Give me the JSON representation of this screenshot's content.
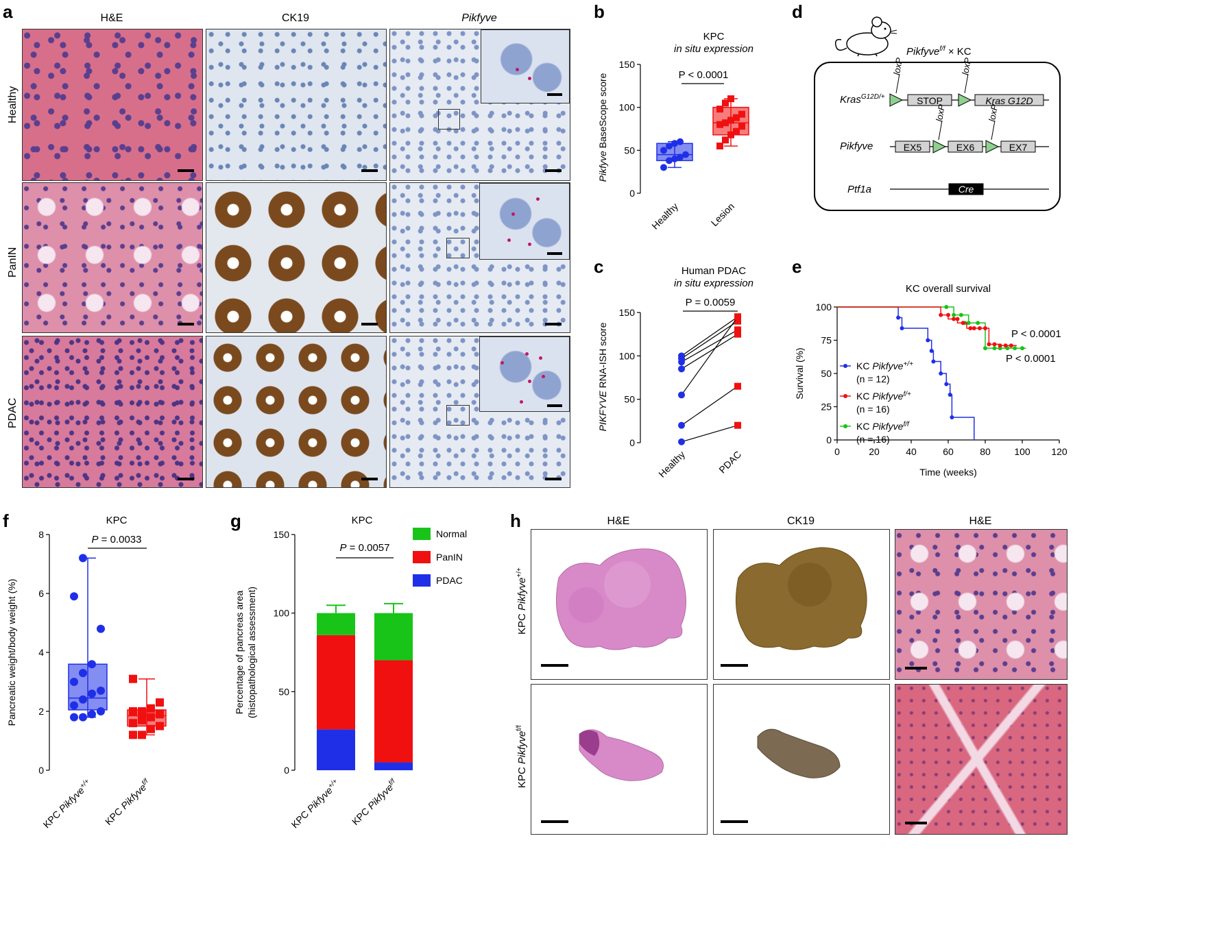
{
  "panel_letters": {
    "a": "a",
    "b": "b",
    "c": "c",
    "d": "d",
    "e": "e",
    "f": "f",
    "g": "g",
    "h": "h"
  },
  "panel_a": {
    "col_titles": [
      "H&E",
      "CK19",
      "Pikfyve"
    ],
    "row_titles": [
      "Healthy",
      "PanIN",
      "PDAC"
    ]
  },
  "panel_d": {
    "cross_label": "Pikfyve",
    "cross_sup": "f/f",
    "cross_suffix": " × KC",
    "kras_label": "Kras",
    "kras_sup": "G12D/+",
    "loxp": "loxP",
    "stop": "STOP",
    "kras_g12d": "Kras G12D",
    "pikfyve_label": "Pikfyve",
    "ex5": "EX5",
    "ex6": "EX6",
    "ex7": "EX7",
    "ptf1a_label": "Ptf1a",
    "cre": "Cre"
  },
  "panel_h": {
    "col_titles": [
      "H&E",
      "CK19",
      "H&E"
    ],
    "row_prefix": "KPC ",
    "row_gene": "Pikfyve",
    "row_sups": [
      "+/+",
      "f/f"
    ]
  },
  "colors": {
    "blue": "#1f2fe8",
    "red": "#f01010",
    "green": "#18c418"
  },
  "chart_data": [
    {
      "id": "b",
      "type": "box",
      "title": "KPC",
      "subtitle": "in situ expression",
      "ylabel_italic": "Pikfyve",
      "ylabel_rest": " BaseScope score",
      "ylim": [
        0,
        150
      ],
      "yticks": [
        0,
        50,
        100,
        150
      ],
      "categories": [
        "Healthy",
        "Lesion"
      ],
      "pvalue": "P < 0.0001",
      "series": [
        {
          "name": "Healthy",
          "color": "#1f2fe8",
          "marker": "circle",
          "values": [
            30,
            38,
            40,
            42,
            45,
            50,
            55,
            58,
            60
          ],
          "q1": 38,
          "median": 45,
          "q3": 58,
          "min": 30,
          "max": 60
        },
        {
          "name": "Lesion",
          "color": "#f01010",
          "marker": "square",
          "values": [
            55,
            62,
            68,
            72,
            78,
            80,
            82,
            85,
            88,
            92,
            98,
            105,
            110
          ],
          "q1": 68,
          "median": 82,
          "q3": 100,
          "min": 55,
          "max": 110
        }
      ]
    },
    {
      "id": "c",
      "type": "paired",
      "title": "Human PDAC",
      "subtitle": "in situ expression",
      "ylabel_italic": "PIKFYVE",
      "ylabel_rest": " RNA-ISH score",
      "ylim": [
        0,
        150
      ],
      "yticks": [
        0,
        50,
        100,
        150
      ],
      "categories": [
        "Healthy",
        "PDAC"
      ],
      "pvalue": "P = 0.0059",
      "pairs": [
        [
          100,
          145
        ],
        [
          97,
          140
        ],
        [
          93,
          130
        ],
        [
          85,
          125
        ],
        [
          55,
          145
        ],
        [
          20,
          65
        ],
        [
          1,
          20
        ]
      ]
    },
    {
      "id": "e",
      "type": "survival",
      "title": "KC overall survival",
      "xlabel": "Time (weeks)",
      "ylabel": "Survival (%)",
      "xlim": [
        0,
        120
      ],
      "xticks": [
        0,
        20,
        40,
        60,
        80,
        100,
        120
      ],
      "ylim": [
        0,
        100
      ],
      "yticks": [
        0,
        25,
        50,
        75,
        100
      ],
      "pvalues": [
        "P < 0.0001",
        "P < 0.0001"
      ],
      "series": [
        {
          "name_prefix": "KC ",
          "name_gene": "Pikfyve",
          "name_sup": "+/+",
          "n": "(n = 12)",
          "color": "#1f2fe8",
          "steps": [
            [
              0,
              100
            ],
            [
              33,
              100
            ],
            [
              33,
              92
            ],
            [
              35,
              92
            ],
            [
              35,
              84
            ],
            [
              49,
              84
            ],
            [
              49,
              75
            ],
            [
              51,
              75
            ],
            [
              51,
              67
            ],
            [
              52,
              67
            ],
            [
              52,
              59
            ],
            [
              56,
              59
            ],
            [
              56,
              50
            ],
            [
              59,
              50
            ],
            [
              59,
              42
            ],
            [
              61,
              42
            ],
            [
              61,
              34
            ],
            [
              62,
              34
            ],
            [
              62,
              17
            ],
            [
              74,
              17
            ],
            [
              74,
              0
            ]
          ],
          "marks": [
            [
              33,
              92
            ],
            [
              35,
              84
            ],
            [
              49,
              75
            ],
            [
              51,
              67
            ],
            [
              52,
              59
            ],
            [
              56,
              50
            ],
            [
              59,
              42
            ],
            [
              61,
              34
            ],
            [
              62,
              17
            ]
          ]
        },
        {
          "name_prefix": "KC ",
          "name_gene": "Pikfyve",
          "name_sup": "f/f",
          "n": "(n = 16)",
          "color": "#18c418",
          "steps": [
            [
              0,
              100
            ],
            [
              59,
              100
            ],
            [
              59,
              100
            ],
            [
              63,
              100
            ],
            [
              63,
              94
            ],
            [
              71,
              94
            ],
            [
              71,
              88
            ],
            [
              80,
              88
            ],
            [
              80,
              69
            ],
            [
              102,
              69
            ]
          ],
          "marks": [
            [
              59,
              100
            ],
            [
              63,
              94
            ],
            [
              67,
              94
            ],
            [
              69,
              88
            ],
            [
              71,
              88
            ],
            [
              76,
              88
            ],
            [
              80,
              69
            ],
            [
              85,
              69
            ],
            [
              88,
              69
            ],
            [
              92,
              69
            ],
            [
              96,
              69
            ],
            [
              100,
              69
            ]
          ]
        },
        {
          "name_prefix": "KC ",
          "name_gene": "Pikfyve",
          "name_sup": "f/+",
          "n": "(n = 16)",
          "color": "#f01010",
          "steps": [
            [
              0,
              100
            ],
            [
              56,
              100
            ],
            [
              56,
              94
            ],
            [
              60,
              94
            ],
            [
              60,
              91
            ],
            [
              65,
              91
            ],
            [
              65,
              88
            ],
            [
              70,
              88
            ],
            [
              70,
              84
            ],
            [
              82,
              84
            ],
            [
              82,
              72
            ],
            [
              88,
              72
            ],
            [
              88,
              71
            ],
            [
              97,
              71
            ]
          ],
          "marks": [
            [
              56,
              94
            ],
            [
              60,
              94
            ],
            [
              63,
              91
            ],
            [
              65,
              91
            ],
            [
              68,
              88
            ],
            [
              72,
              84
            ],
            [
              74,
              84
            ],
            [
              77,
              84
            ],
            [
              80,
              84
            ],
            [
              82,
              72
            ],
            [
              85,
              72
            ],
            [
              88,
              71
            ],
            [
              91,
              71
            ],
            [
              94,
              71
            ]
          ]
        }
      ]
    },
    {
      "id": "f",
      "type": "box",
      "title": "KPC",
      "ylabel": "Pancreatic weight/body weight (%)",
      "ylim": [
        0,
        8
      ],
      "yticks": [
        0,
        2,
        4,
        6,
        8
      ],
      "categories_prefix": "KPC ",
      "categories_gene": "Pikfyve",
      "categories_sups": [
        "+/+",
        "f/f"
      ],
      "pvalue": "P = 0.0033",
      "series": [
        {
          "color": "#1f2fe8",
          "marker": "circle",
          "values": [
            1.8,
            1.8,
            1.9,
            2.0,
            2.2,
            2.4,
            2.6,
            2.7,
            3.0,
            3.3,
            3.6,
            4.8,
            5.9,
            7.2
          ],
          "q1": 2.05,
          "median": 2.45,
          "q3": 3.6,
          "min": 1.8,
          "max": 7.2
        },
        {
          "color": "#f01010",
          "marker": "square",
          "values": [
            1.2,
            1.2,
            1.4,
            1.5,
            1.6,
            1.7,
            1.8,
            1.9,
            2.0,
            2.0,
            2.1,
            2.3,
            3.1
          ],
          "q1": 1.5,
          "median": 1.85,
          "q3": 2.05,
          "min": 1.2,
          "max": 3.1
        }
      ]
    },
    {
      "id": "g",
      "type": "stacked-bar",
      "title": "KPC",
      "ylabel": "Percentage of pancreas area",
      "ylabel2": "(histopathological assessment)",
      "ylim": [
        0,
        150
      ],
      "yticks": [
        0,
        50,
        100,
        150
      ],
      "categories_prefix": "KPC ",
      "categories_gene": "Pikfyve",
      "categories_sups": [
        "+/+",
        "f/f"
      ],
      "pvalue": "P = 0.0057",
      "series": [
        {
          "name": "PDAC",
          "color": "#1f2fe8",
          "values": [
            26,
            5
          ],
          "errors": [
            7,
            2
          ]
        },
        {
          "name": "PanIN",
          "color": "#f01010",
          "values": [
            60,
            65
          ],
          "errors": [
            7,
            6
          ]
        },
        {
          "name": "Normal",
          "color": "#18c418",
          "values": [
            14,
            30
          ],
          "errors": [
            5,
            6
          ]
        }
      ]
    }
  ]
}
